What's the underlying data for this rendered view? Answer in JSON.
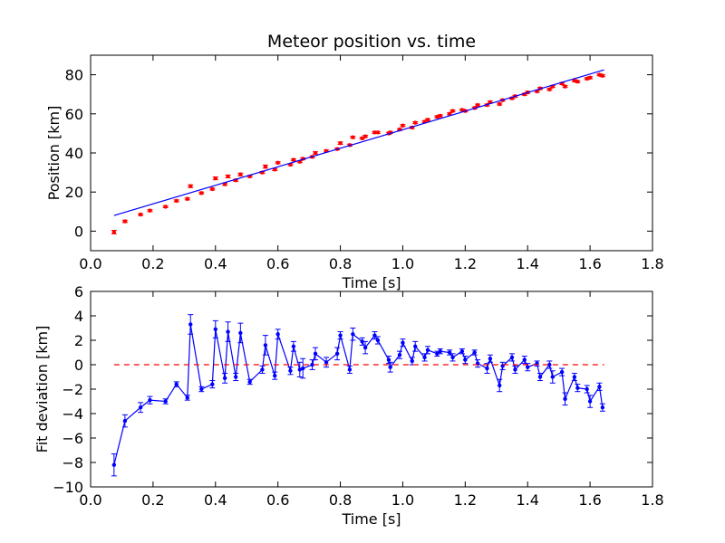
{
  "chart_data": [
    {
      "type": "scatter",
      "title": "Meteor position vs. time",
      "xlabel": "Time [s]",
      "ylabel": "Position [km]",
      "xlim": [
        0.0,
        1.8
      ],
      "ylim": [
        -10,
        90
      ],
      "xticks": [
        0.0,
        0.2,
        0.4,
        0.6,
        0.8,
        1.0,
        1.2,
        1.4,
        1.6,
        1.8
      ],
      "xtick_labels": [
        "0.0",
        "0.2",
        "0.4",
        "0.6",
        "0.8",
        "1.0",
        "1.2",
        "1.4",
        "1.6",
        "1.8"
      ],
      "yticks": [
        0,
        20,
        40,
        60,
        80
      ],
      "ytick_labels": [
        "0",
        "20",
        "40",
        "60",
        "80"
      ],
      "grid": false,
      "colors": {
        "data": "#ff0000",
        "fit": "#0000ff"
      },
      "series": [
        {
          "kind": "points-with-errorbars",
          "color": "#ff0000",
          "x": [
            0.075,
            0.11,
            0.16,
            0.19,
            0.24,
            0.275,
            0.31,
            0.32,
            0.355,
            0.39,
            0.4,
            0.43,
            0.44,
            0.465,
            0.48,
            0.51,
            0.55,
            0.56,
            0.59,
            0.6,
            0.64,
            0.65,
            0.67,
            0.68,
            0.71,
            0.72,
            0.755,
            0.79,
            0.8,
            0.83,
            0.84,
            0.87,
            0.88,
            0.91,
            0.92,
            0.955,
            0.96,
            0.99,
            1.0,
            1.03,
            1.04,
            1.07,
            1.08,
            1.11,
            1.12,
            1.15,
            1.16,
            1.19,
            1.2,
            1.23,
            1.24,
            1.27,
            1.28,
            1.31,
            1.32,
            1.35,
            1.36,
            1.39,
            1.4,
            1.43,
            1.44,
            1.47,
            1.48,
            1.51,
            1.52,
            1.55,
            1.56,
            1.59,
            1.6,
            1.63,
            1.64
          ],
          "y": [
            -0.5,
            5,
            8.5,
            10.5,
            12.5,
            15.5,
            16.5,
            23,
            19.5,
            21.5,
            27,
            24,
            28,
            26,
            29,
            28,
            30,
            33,
            31.5,
            35,
            34,
            36.5,
            35.5,
            37,
            38,
            40,
            41,
            42,
            45,
            44,
            48,
            47.5,
            48.5,
            50.5,
            50.5,
            50,
            50.5,
            52,
            54,
            53,
            55.5,
            56,
            57,
            58.5,
            59,
            60,
            61.5,
            62,
            61.5,
            63,
            64.5,
            64.5,
            66,
            65,
            67,
            68,
            69,
            70,
            71,
            71.5,
            73,
            72.5,
            74,
            75.5,
            74,
            77,
            76.5,
            78,
            78.5,
            80,
            79.5
          ],
          "yerr": [
            0.9,
            0.6,
            0.5,
            0.5,
            0.5,
            0.5,
            0.5,
            0.7,
            0.5,
            0.5,
            0.7,
            0.6,
            0.7,
            0.5,
            0.7,
            0.5,
            0.5,
            0.8,
            0.5,
            0.5,
            0.5,
            0.5,
            0.5,
            0.5,
            0.5,
            0.6,
            0.5,
            0.5,
            0.6,
            0.5,
            0.5,
            0.5,
            0.5,
            0.5,
            0.5,
            0.5,
            0.5,
            0.5,
            0.5,
            0.5,
            0.5,
            0.5,
            0.5,
            0.5,
            0.5,
            0.5,
            0.5,
            0.5,
            0.5,
            0.5,
            0.5,
            0.5,
            0.5,
            0.5,
            0.5,
            0.5,
            0.5,
            0.5,
            0.5,
            0.5,
            0.5,
            0.5,
            0.5,
            0.5,
            0.5,
            0.5,
            0.5,
            0.5,
            0.5,
            0.5,
            0.5
          ]
        },
        {
          "kind": "line",
          "color": "#0000ff",
          "x": [
            0.075,
            1.645
          ],
          "y": [
            8,
            82.5
          ]
        }
      ]
    },
    {
      "type": "line",
      "title": "",
      "xlabel": "Time [s]",
      "ylabel": "Fit deviation [km]",
      "xlim": [
        0.0,
        1.8
      ],
      "ylim": [
        -10,
        6
      ],
      "xticks": [
        0.0,
        0.2,
        0.4,
        0.6,
        0.8,
        1.0,
        1.2,
        1.4,
        1.6,
        1.8
      ],
      "xtick_labels": [
        "0.0",
        "0.2",
        "0.4",
        "0.6",
        "0.8",
        "1.0",
        "1.2",
        "1.4",
        "1.6",
        "1.8"
      ],
      "yticks": [
        -10,
        -8,
        -6,
        -4,
        -2,
        0,
        2,
        4,
        6
      ],
      "ytick_labels": [
        "−10",
        "−8",
        "−6",
        "−4",
        "−2",
        "0",
        "2",
        "4",
        "6"
      ],
      "grid": false,
      "colors": {
        "residual": "#0000ff",
        "zero": "#ff0000"
      },
      "series": [
        {
          "kind": "line-with-errorbars",
          "color": "#0000ff",
          "x": [
            0.075,
            0.11,
            0.16,
            0.19,
            0.24,
            0.275,
            0.31,
            0.32,
            0.355,
            0.39,
            0.4,
            0.43,
            0.44,
            0.465,
            0.48,
            0.51,
            0.55,
            0.56,
            0.59,
            0.6,
            0.64,
            0.65,
            0.67,
            0.68,
            0.71,
            0.72,
            0.755,
            0.79,
            0.8,
            0.83,
            0.84,
            0.87,
            0.88,
            0.91,
            0.92,
            0.955,
            0.96,
            0.99,
            1.0,
            1.03,
            1.04,
            1.07,
            1.08,
            1.11,
            1.12,
            1.15,
            1.16,
            1.19,
            1.2,
            1.23,
            1.24,
            1.27,
            1.28,
            1.31,
            1.32,
            1.35,
            1.36,
            1.39,
            1.4,
            1.43,
            1.44,
            1.47,
            1.48,
            1.51,
            1.52,
            1.55,
            1.56,
            1.59,
            1.6,
            1.63,
            1.64
          ],
          "y": [
            -8.2,
            -4.6,
            -3.5,
            -2.9,
            -3.0,
            -1.6,
            -2.7,
            3.3,
            -2.0,
            -1.6,
            2.9,
            -1.1,
            2.7,
            -1.0,
            2.6,
            -1.4,
            -0.4,
            1.6,
            -0.9,
            2.5,
            -0.5,
            1.5,
            -0.4,
            -0.3,
            0.0,
            0.9,
            0.2,
            0.9,
            2.4,
            -0.4,
            2.5,
            1.9,
            1.4,
            2.4,
            2.0,
            0.4,
            -0.2,
            0.8,
            1.8,
            0.3,
            1.5,
            0.6,
            1.2,
            0.9,
            1.1,
            1.0,
            0.6,
            1.1,
            0.4,
            1.0,
            0.1,
            -0.3,
            0.5,
            -1.7,
            -0.1,
            0.6,
            -0.4,
            0.4,
            -0.2,
            0.1,
            -1.0,
            0.0,
            -1.0,
            -0.6,
            -2.8,
            -1.0,
            -1.9,
            -2.0,
            -3.0,
            -1.8,
            -3.5
          ],
          "yerr": [
            0.9,
            0.5,
            0.4,
            0.3,
            0.2,
            0.2,
            0.2,
            0.8,
            0.2,
            0.3,
            0.7,
            0.4,
            0.8,
            0.3,
            0.8,
            0.2,
            0.3,
            0.8,
            0.3,
            0.4,
            0.3,
            0.4,
            0.6,
            0.8,
            0.4,
            0.5,
            0.4,
            0.5,
            0.3,
            0.3,
            0.5,
            0.3,
            0.5,
            0.3,
            0.3,
            0.3,
            0.4,
            0.3,
            0.3,
            0.3,
            0.4,
            0.3,
            0.3,
            0.2,
            0.2,
            0.2,
            0.3,
            0.2,
            0.3,
            0.2,
            0.3,
            0.4,
            0.3,
            0.5,
            0.3,
            0.3,
            0.3,
            0.3,
            0.3,
            0.2,
            0.3,
            0.3,
            0.5,
            0.3,
            0.5,
            0.3,
            0.3,
            0.3,
            0.5,
            0.3,
            0.3
          ]
        },
        {
          "kind": "dashed-line",
          "color": "#ff0000",
          "x": [
            0.075,
            1.645
          ],
          "y": [
            0,
            0
          ]
        }
      ]
    }
  ]
}
